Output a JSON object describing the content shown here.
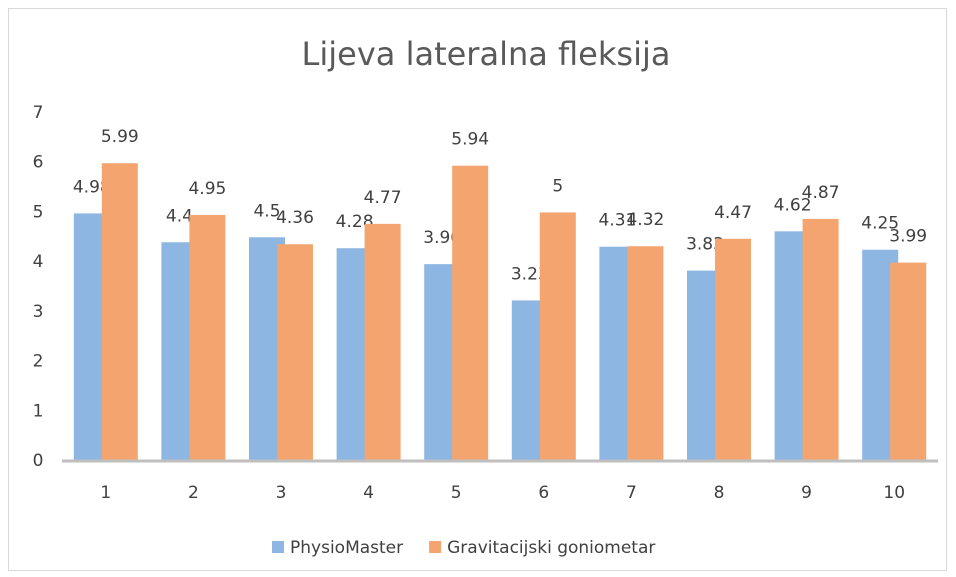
{
  "chart_data": {
    "type": "bar",
    "title": "Lijeva lateralna fleksija",
    "categories": [
      "1",
      "2",
      "3",
      "4",
      "5",
      "6",
      "7",
      "8",
      "9",
      "10"
    ],
    "series": [
      {
        "name": "PhysioMaster",
        "color": "#8db6e2",
        "values": [
          4.98,
          4.4,
          4.5,
          4.28,
          3.96,
          3.23,
          4.31,
          3.83,
          4.62,
          4.25
        ]
      },
      {
        "name": "Gravitacijski goniometar",
        "color": "#f3a46f",
        "values": [
          5.99,
          4.95,
          4.36,
          4.77,
          5.94,
          5,
          4.32,
          4.47,
          4.87,
          3.99
        ]
      }
    ],
    "ylim": [
      0,
      7
    ],
    "yticks": [
      0,
      1,
      2,
      3,
      4,
      5,
      6,
      7
    ],
    "grid": false,
    "legend": "bottom"
  }
}
